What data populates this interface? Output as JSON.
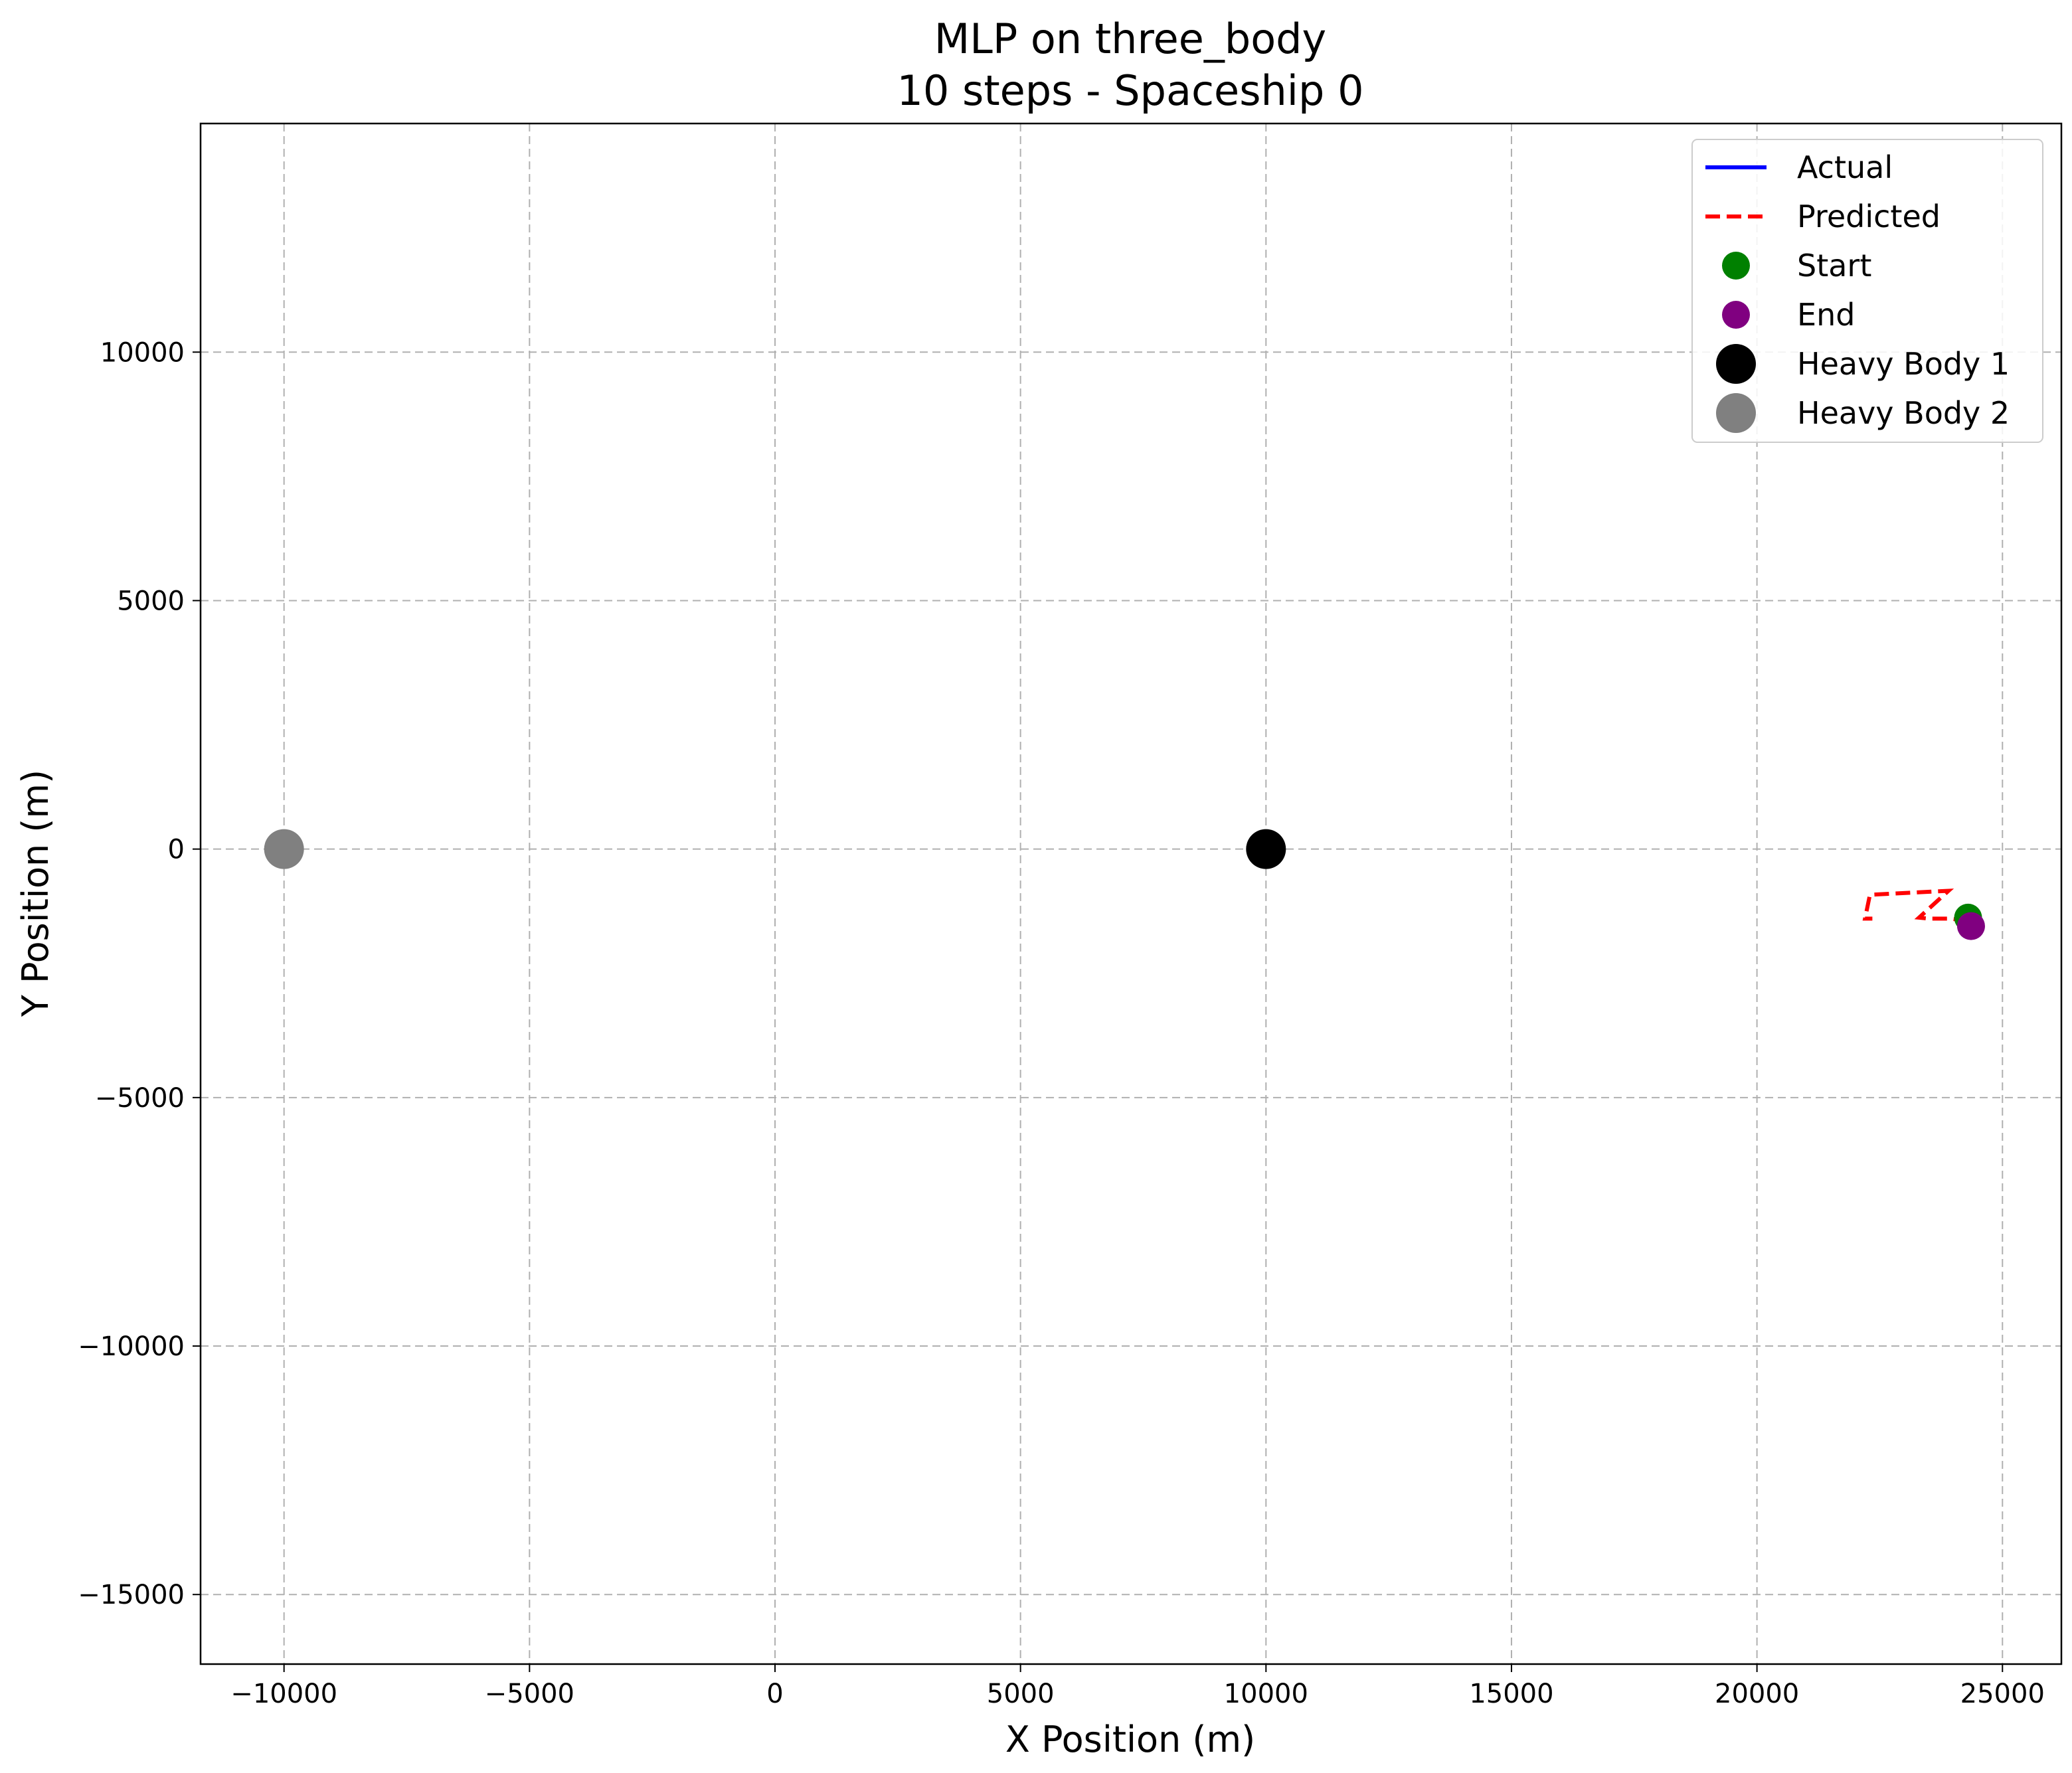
{
  "chart_data": {
    "type": "line",
    "title": "MLP on three_body",
    "subtitle": "10 steps - Spaceship 0",
    "xlabel": "X Position (m)",
    "ylabel": "Y Position (m)",
    "xlim": [
      -11700,
      26200
    ],
    "ylim": [
      -16400,
      14600
    ],
    "xticks": [
      -10000,
      -5000,
      0,
      5000,
      10000,
      15000,
      20000,
      25000
    ],
    "yticks": [
      -15000,
      -10000,
      -5000,
      0,
      5000,
      10000
    ],
    "grid": true,
    "legend_position": "upper right",
    "series": [
      {
        "name": "Actual",
        "kind": "line",
        "color": "#0000ff",
        "x": [
          24300,
          24330,
          24360
        ],
        "y": [
          -1380,
          -1450,
          -1550
        ]
      },
      {
        "name": "Predicted",
        "kind": "dashed-line",
        "color": "#ff0000",
        "x": [
          24300,
          23950,
          23500,
          23300,
          23900,
          22300,
          22200,
          22350
        ],
        "y": [
          -1450,
          -1400,
          -1400,
          -1380,
          -840,
          -920,
          -1400,
          -1400
        ]
      },
      {
        "name": "Start",
        "kind": "marker",
        "color": "#008000",
        "x": [
          24300
        ],
        "y": [
          -1380
        ]
      },
      {
        "name": "End",
        "kind": "marker",
        "color": "#800080",
        "x": [
          24360
        ],
        "y": [
          -1550
        ]
      },
      {
        "name": "Heavy Body 1",
        "kind": "marker",
        "color": "#000000",
        "x": [
          10000
        ],
        "y": [
          0
        ]
      },
      {
        "name": "Heavy Body 2",
        "kind": "marker",
        "color": "#808080",
        "x": [
          -10000
        ],
        "y": [
          0
        ]
      }
    ]
  }
}
